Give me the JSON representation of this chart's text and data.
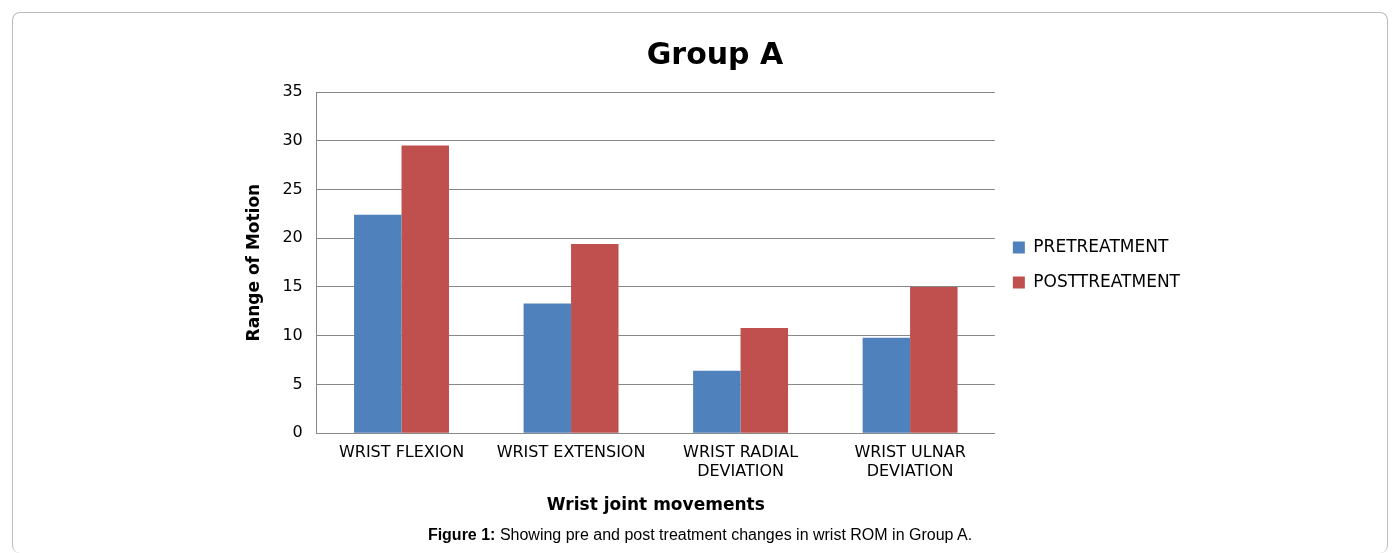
{
  "chart_data": {
    "type": "bar",
    "title": "Group A",
    "xlabel": "Wrist joint movements",
    "ylabel": "Range of Motion",
    "categories": [
      "WRIST FLEXION",
      "WRIST EXTENSION",
      "WRIST RADIAL DEVIATION",
      "WRIST ULNAR DEVIATION"
    ],
    "series": [
      {
        "name": "PRETREATMENT",
        "color": "#4f81bd",
        "values": [
          22.4,
          13.3,
          6.4,
          9.8
        ]
      },
      {
        "name": "POSTTREATMENT",
        "color": "#c0504d",
        "values": [
          29.5,
          19.4,
          10.8,
          15.0
        ]
      }
    ],
    "ylim": [
      0,
      35
    ],
    "yticks": [
      0,
      5,
      10,
      15,
      20,
      25,
      30,
      35
    ],
    "grid": "y",
    "legend": "right",
    "annotations": [
      "Figure 1: Showing pre and post treatment changes in wrist ROM in Group A."
    ]
  }
}
